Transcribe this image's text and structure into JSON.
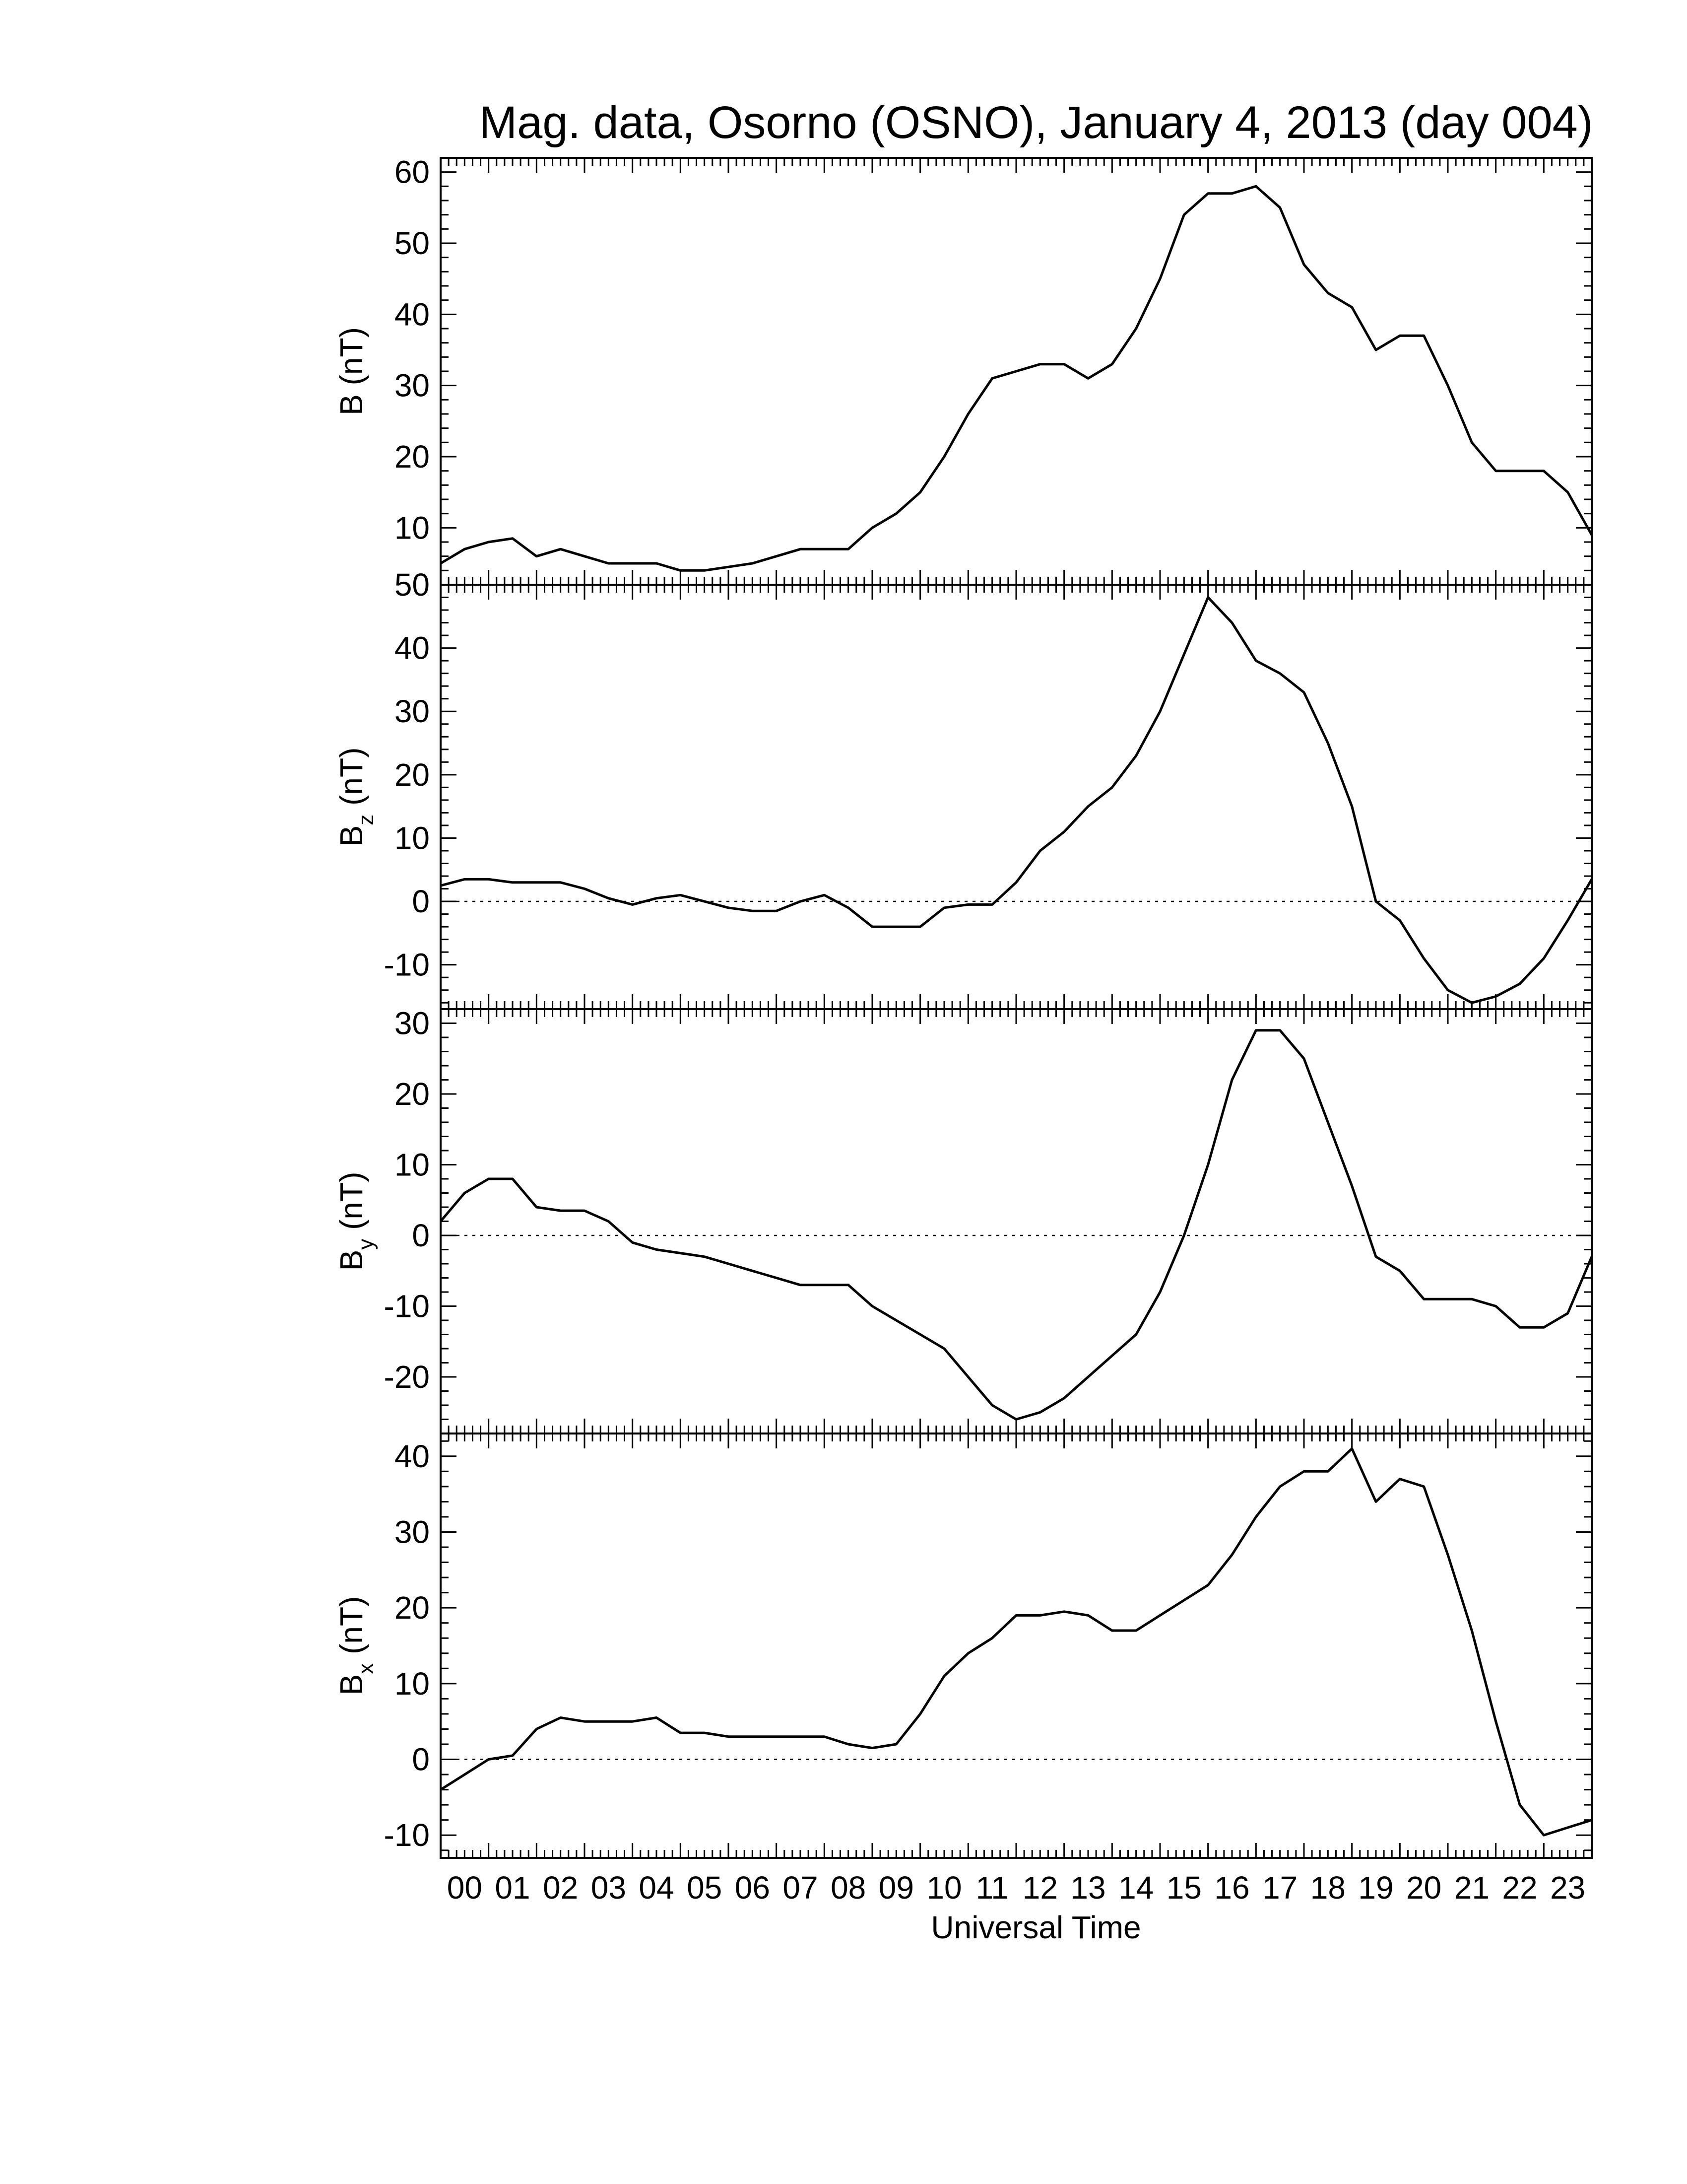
{
  "figure": {
    "title": "Mag. data, Osorno (OSNO), January 4, 2013 (day 004)",
    "xlabel": "Universal Time",
    "x_tick_labels": [
      "00",
      "01",
      "02",
      "03",
      "04",
      "05",
      "06",
      "07",
      "08",
      "09",
      "10",
      "11",
      "12",
      "13",
      "14",
      "15",
      "16",
      "17",
      "18",
      "19",
      "20",
      "21",
      "22",
      "23"
    ]
  },
  "chart_data": [
    {
      "type": "line",
      "panel": "B",
      "ylabel_main": "B",
      "ylabel_sub": "",
      "ylabel_unit": "(nT)",
      "xlim": [
        0,
        24
      ],
      "ylim": [
        2,
        62
      ],
      "yticks": [
        10,
        20,
        30,
        40,
        50,
        60
      ],
      "zero_line": false,
      "x": [
        0,
        0.5,
        1,
        1.5,
        2,
        2.5,
        3,
        3.5,
        4,
        4.5,
        5,
        5.5,
        6,
        6.5,
        7,
        7.5,
        8,
        8.5,
        9,
        9.5,
        10,
        10.5,
        11,
        11.5,
        12,
        12.5,
        13,
        13.5,
        14,
        14.5,
        15,
        15.5,
        16,
        16.5,
        17,
        17.5,
        18,
        18.5,
        19,
        19.5,
        20,
        20.5,
        21,
        21.5,
        22,
        22.5,
        23,
        23.5,
        24
      ],
      "values": [
        5,
        7,
        8,
        8.5,
        6,
        7,
        6,
        5,
        5,
        5,
        4,
        4,
        4.5,
        5,
        6,
        7,
        7,
        7,
        10,
        12,
        15,
        20,
        26,
        31,
        32,
        33,
        33,
        31,
        33,
        38,
        45,
        54,
        57,
        57,
        58,
        55,
        47,
        43,
        41,
        35,
        37,
        37,
        30,
        22,
        18,
        18,
        18,
        15,
        9
      ]
    },
    {
      "type": "line",
      "panel": "Bz",
      "ylabel_main": "B",
      "ylabel_sub": "z",
      "ylabel_unit": "(nT)",
      "xlim": [
        0,
        24
      ],
      "ylim": [
        -17,
        50
      ],
      "yticks": [
        -10,
        0,
        10,
        20,
        30,
        40,
        50
      ],
      "zero_line": true,
      "x": [
        0,
        0.5,
        1,
        1.5,
        2,
        2.5,
        3,
        3.5,
        4,
        4.5,
        5,
        5.5,
        6,
        6.5,
        7,
        7.5,
        8,
        8.5,
        9,
        9.5,
        10,
        10.5,
        11,
        11.5,
        12,
        12.5,
        13,
        13.5,
        14,
        14.5,
        15,
        15.5,
        16,
        16.5,
        17,
        17.5,
        18,
        18.5,
        19,
        19.5,
        20,
        20.5,
        21,
        21.5,
        22,
        22.5,
        23,
        23.5,
        24
      ],
      "values": [
        2.5,
        3.5,
        3.5,
        3,
        3,
        3,
        2,
        0.5,
        -0.5,
        0.5,
        1,
        0,
        -1,
        -1.5,
        -1.5,
        0,
        1,
        -1,
        -4,
        -4,
        -4,
        -1,
        -0.5,
        -0.5,
        3,
        8,
        11,
        15,
        18,
        23,
        30,
        39,
        48,
        44,
        38,
        36,
        33,
        25,
        15,
        0,
        -3,
        -9,
        -14,
        -16,
        -15,
        -13,
        -9,
        -3,
        3.5
      ]
    },
    {
      "type": "line",
      "panel": "By",
      "ylabel_main": "B",
      "ylabel_sub": "y",
      "ylabel_unit": "(nT)",
      "xlim": [
        0,
        24
      ],
      "ylim": [
        -28,
        32
      ],
      "yticks": [
        -20,
        -10,
        0,
        10,
        20,
        30
      ],
      "zero_line": true,
      "x": [
        0,
        0.5,
        1,
        1.5,
        2,
        2.5,
        3,
        3.5,
        4,
        4.5,
        5,
        5.5,
        6,
        6.5,
        7,
        7.5,
        8,
        8.5,
        9,
        9.5,
        10,
        10.5,
        11,
        11.5,
        12,
        12.5,
        13,
        13.5,
        14,
        14.5,
        15,
        15.5,
        16,
        16.5,
        17,
        17.5,
        18,
        18.5,
        19,
        19.5,
        20,
        20.5,
        21,
        21.5,
        22,
        22.5,
        23,
        23.5,
        24
      ],
      "values": [
        2,
        6,
        8,
        8,
        4,
        3.5,
        3.5,
        2,
        -1,
        -2,
        -2.5,
        -3,
        -4,
        -5,
        -6,
        -7,
        -7,
        -7,
        -10,
        -12,
        -14,
        -16,
        -20,
        -24,
        -26,
        -25,
        -23,
        -20,
        -17,
        -14,
        -8,
        0,
        10,
        22,
        29,
        29,
        25,
        16,
        7,
        -3,
        -5,
        -9,
        -9,
        -9,
        -10,
        -13,
        -13,
        -11,
        -3
      ]
    },
    {
      "type": "line",
      "panel": "Bx",
      "ylabel_main": "B",
      "ylabel_sub": "x",
      "ylabel_unit": "(nT)",
      "xlim": [
        0,
        24
      ],
      "ylim": [
        -13,
        43
      ],
      "yticks": [
        -10,
        0,
        10,
        20,
        30,
        40
      ],
      "zero_line": true,
      "x": [
        0,
        0.5,
        1,
        1.5,
        2,
        2.5,
        3,
        3.5,
        4,
        4.5,
        5,
        5.5,
        6,
        6.5,
        7,
        7.5,
        8,
        8.5,
        9,
        9.5,
        10,
        10.5,
        11,
        11.5,
        12,
        12.5,
        13,
        13.5,
        14,
        14.5,
        15,
        15.5,
        16,
        16.5,
        17,
        17.5,
        18,
        18.5,
        19,
        19.5,
        20,
        20.5,
        21,
        21.5,
        22,
        22.5,
        23,
        23.5,
        24
      ],
      "values": [
        -4,
        -2,
        0,
        0.5,
        4,
        5.5,
        5,
        5,
        5,
        5.5,
        3.5,
        3.5,
        3,
        3,
        3,
        3,
        3,
        2,
        1.5,
        2,
        6,
        11,
        14,
        16,
        19,
        19,
        19.5,
        19,
        17,
        17,
        19,
        21,
        23,
        27,
        32,
        36,
        38,
        38,
        41,
        34,
        37,
        36,
        27,
        17,
        5,
        -6,
        -10,
        -9,
        -8
      ]
    }
  ]
}
